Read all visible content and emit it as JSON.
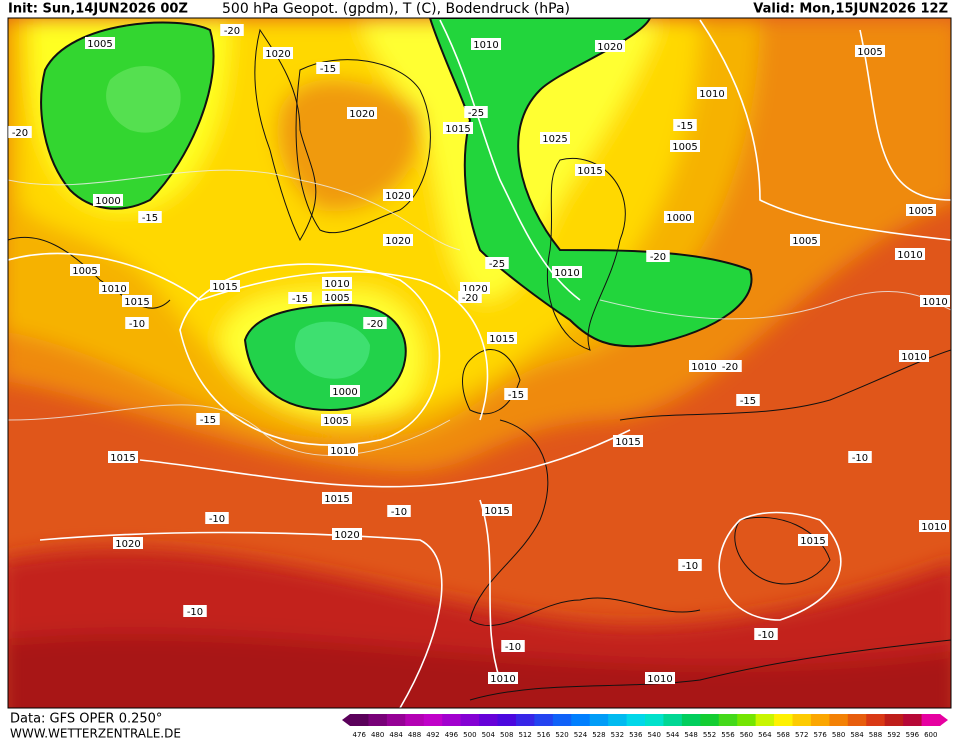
{
  "header": {
    "init": "Init: Sun,14JUN2026 00Z",
    "title": "500 hPa Geopot. (gpdm), T (C), Bodendruck (hPa)",
    "valid": "Valid: Mon,15JUN2026 12Z"
  },
  "footer": {
    "source": "Data: GFS OPER 0.250°",
    "site": "WWW.WETTERZENTRALE.DE"
  },
  "colorbar": {
    "labels": [
      476,
      480,
      484,
      488,
      492,
      496,
      500,
      504,
      508,
      512,
      516,
      520,
      524,
      528,
      532,
      536,
      540,
      544,
      548,
      552,
      556,
      560,
      564,
      568,
      572,
      576,
      580,
      584,
      588,
      592,
      596,
      600
    ]
  },
  "map": {
    "labels": [
      "1005",
      "-20",
      "1020",
      "-15",
      "1010",
      "1020",
      "1005",
      "1010",
      "-15",
      "1005",
      "1020",
      "1015",
      "-25",
      "1025",
      "1015",
      "-20",
      "1000",
      "-15",
      "1020",
      "1000",
      "1005",
      "1020",
      "1005",
      "1010",
      "-25",
      "-20",
      "1005",
      "1010",
      "1015",
      "1015",
      "1010",
      "1005",
      "-15",
      "1020",
      "-20",
      "1010",
      "1010",
      "-10",
      "-20",
      "1015",
      "1010",
      "1010",
      "-20",
      "1000",
      "-15",
      "1005",
      "-15",
      "-15",
      "1015",
      "1010",
      "1015",
      "-10",
      "1015",
      "1015",
      "-10",
      "-10",
      "1010",
      "1020",
      "1020",
      "1015",
      "-10",
      "-10",
      "-10",
      "-10",
      "1010",
      "1010"
    ]
  }
}
